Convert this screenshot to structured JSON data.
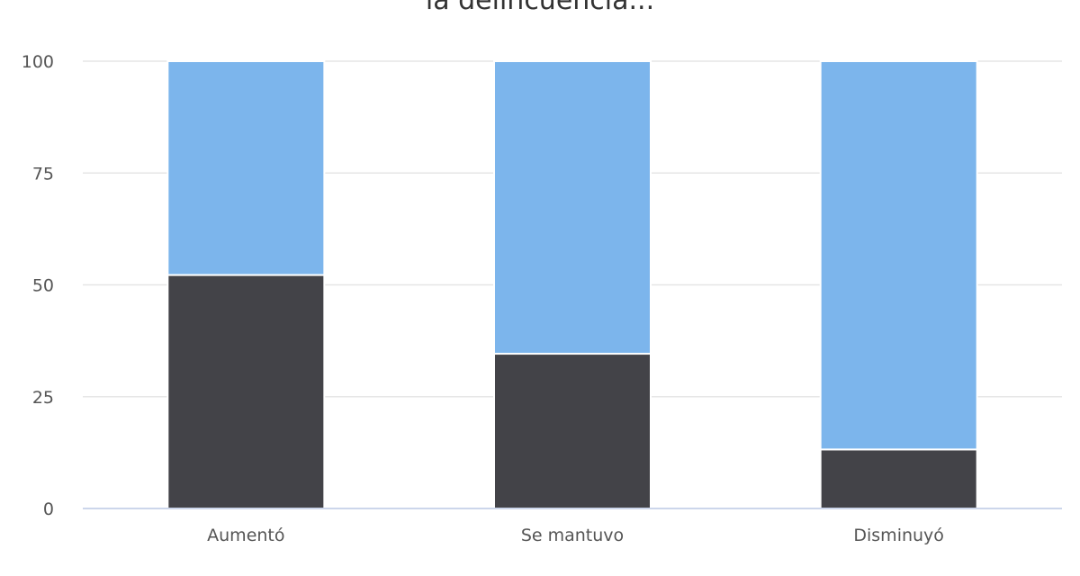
{
  "chart_data": {
    "type": "bar",
    "stacked": true,
    "title": "la delincuencia...",
    "categories": [
      "Aumentó",
      "Se mantuvo",
      "Disminuyó"
    ],
    "series": [
      {
        "color": "#434348",
        "values": [
          52.2,
          34.6,
          13.2
        ]
      },
      {
        "color": "#7cb5ec",
        "values": [
          47.8,
          65.4,
          86.8
        ]
      }
    ],
    "ylim": [
      0,
      100
    ],
    "yticks": [
      0,
      25,
      50,
      75,
      100
    ],
    "grid": true,
    "legend": "none",
    "xlabel": "",
    "ylabel": ""
  }
}
